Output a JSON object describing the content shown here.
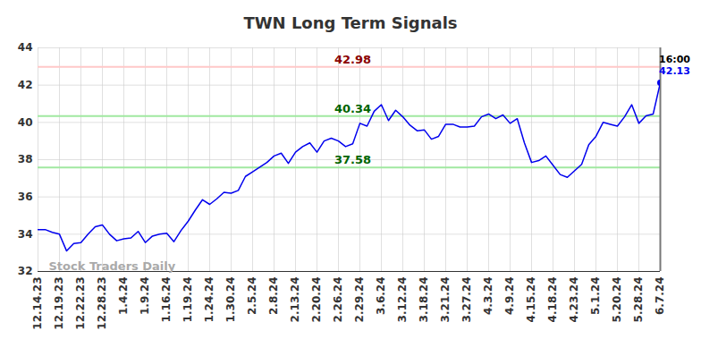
{
  "chart_data": {
    "type": "line",
    "title": "TWN Long Term Signals",
    "watermark": "Stock Traders Daily",
    "categories": [
      "12.14.23",
      null,
      null,
      "12.19.23",
      null,
      null,
      "12.22.23",
      null,
      null,
      "12.28.23",
      null,
      null,
      "1.4.24",
      null,
      null,
      "1.9.24",
      null,
      null,
      "1.16.24",
      null,
      null,
      "1.19.24",
      null,
      null,
      "1.24.24",
      null,
      null,
      "1.30.24",
      null,
      null,
      "2.5.24",
      null,
      null,
      "2.8.24",
      null,
      null,
      "2.13.24",
      null,
      null,
      "2.20.24",
      null,
      null,
      "2.26.24",
      null,
      null,
      "2.29.24",
      null,
      null,
      "3.6.24",
      null,
      null,
      "3.12.24",
      null,
      null,
      "3.18.24",
      null,
      null,
      "3.21.24",
      null,
      null,
      "3.27.24",
      null,
      null,
      "4.3.24",
      null,
      null,
      "4.9.24",
      null,
      null,
      "4.15.24",
      null,
      null,
      "4.18.24",
      null,
      null,
      "4.23.24",
      null,
      null,
      "5.1.24",
      null,
      null,
      "5.20.24",
      null,
      null,
      "5.28.24",
      null,
      null,
      "6.7.24"
    ],
    "values": [
      34.25,
      34.25,
      34.1,
      34.0,
      33.1,
      33.5,
      33.55,
      34.0,
      34.4,
      34.5,
      34.0,
      33.65,
      33.75,
      33.8,
      34.15,
      33.55,
      33.9,
      34.0,
      34.05,
      33.6,
      34.2,
      34.7,
      35.3,
      35.85,
      35.6,
      35.9,
      36.25,
      36.2,
      36.35,
      37.1,
      37.35,
      37.6,
      37.85,
      38.2,
      38.35,
      37.8,
      38.4,
      38.7,
      38.9,
      38.4,
      39.0,
      39.15,
      39.0,
      38.7,
      38.85,
      39.95,
      39.8,
      40.6,
      40.95,
      40.1,
      40.65,
      40.3,
      39.85,
      39.55,
      39.6,
      39.1,
      39.25,
      39.9,
      39.9,
      39.75,
      39.75,
      39.8,
      40.3,
      40.45,
      40.2,
      40.4,
      39.95,
      40.2,
      38.9,
      37.85,
      37.95,
      38.2,
      37.7,
      37.2,
      37.05,
      37.4,
      37.75,
      38.8,
      39.25,
      40.0,
      39.9,
      39.8,
      40.3,
      40.95,
      39.95,
      40.35,
      40.45,
      42.13
    ],
    "color": "#0000ee",
    "marker": "none",
    "last_point_marker": "circle",
    "last_time_label": "16:00",
    "reference_lines": [
      {
        "value": 42.98,
        "color": "#ffc8c8",
        "label_color": "#8b0000"
      },
      {
        "value": 40.34,
        "color": "#a0e8a0",
        "label_color": "#006400"
      },
      {
        "value": 37.58,
        "color": "#a0e8a0",
        "label_color": "#006400"
      }
    ],
    "ylim": [
      32,
      44
    ],
    "yticks": [
      32,
      34,
      36,
      38,
      40,
      42,
      44
    ],
    "grid": true
  }
}
